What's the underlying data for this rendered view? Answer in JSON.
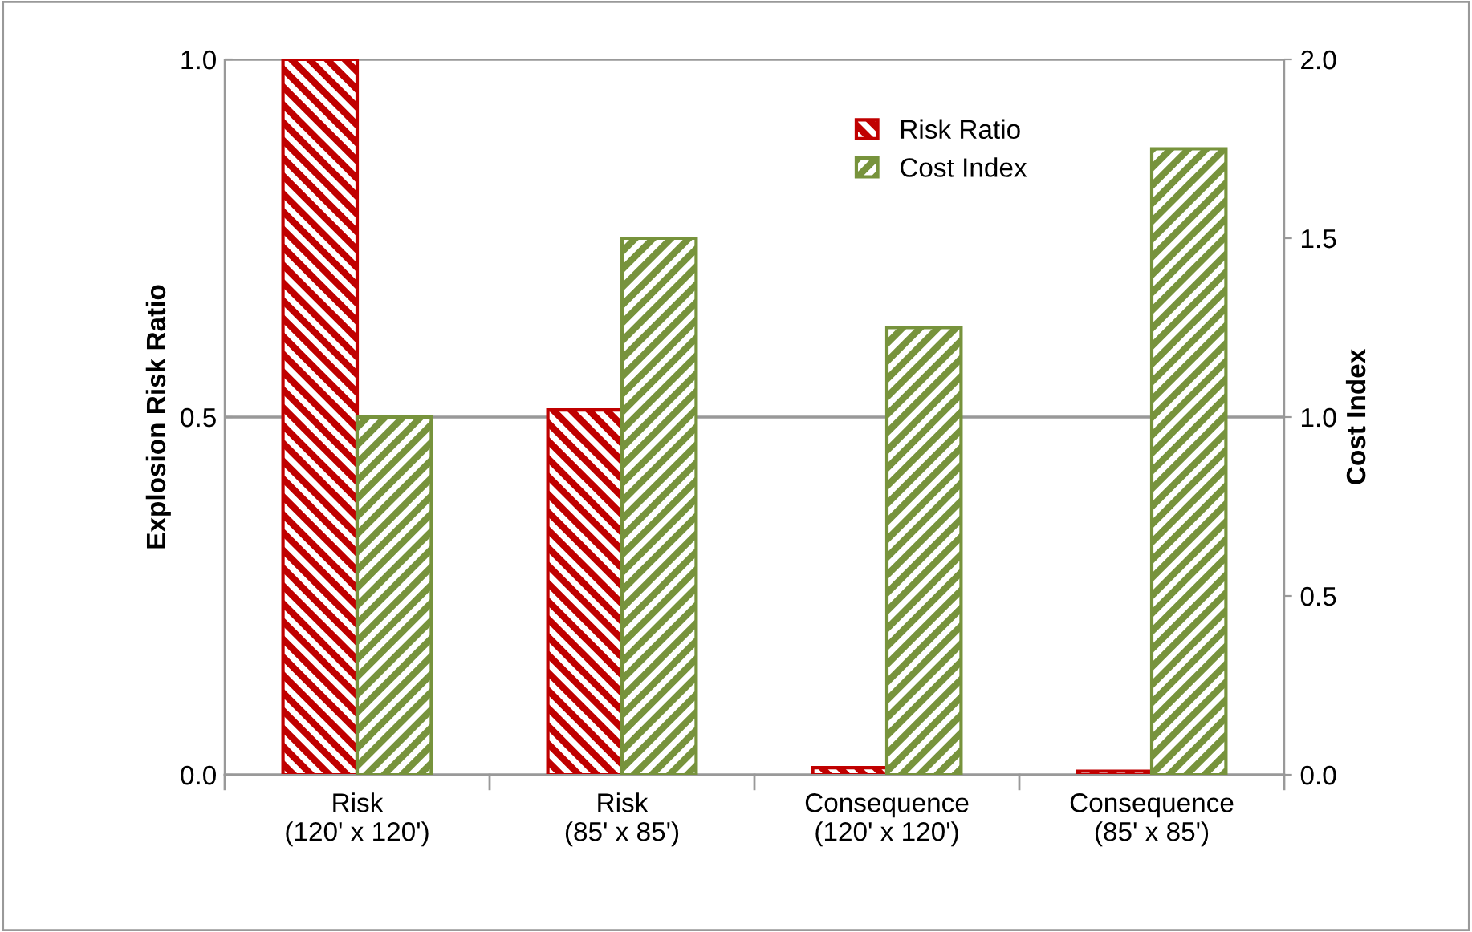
{
  "chart_data": {
    "type": "bar",
    "ylabel": "Explosion Risk Ratio",
    "y2label": "Cost Index",
    "categories": [
      "Risk\n(120' x 120')",
      "Risk\n(85' x 85')",
      "Consequence\n(120' x 120')",
      "Consequence\n(85' x 85')"
    ],
    "series": [
      {
        "name": "Risk Ratio",
        "color": "#c00000",
        "values": [
          1.0,
          0.51,
          0.01,
          0.005
        ]
      },
      {
        "name": "Cost Index",
        "color": "#77933c",
        "axis": "y2",
        "values": [
          1.0,
          1.5,
          1.25,
          1.75
        ]
      }
    ],
    "ylim": [
      0,
      1
    ],
    "yticks": [
      {
        "value": 0,
        "label": "0.0"
      },
      {
        "value": 0.5,
        "label": "0.5"
      },
      {
        "value": 1,
        "label": "1.0"
      }
    ],
    "y2lim": [
      0,
      2
    ],
    "y2ticks": [
      {
        "value": 0,
        "label": "0.0"
      },
      {
        "value": 0.5,
        "label": "0.5"
      },
      {
        "value": 1,
        "label": "1.0"
      },
      {
        "value": 1.5,
        "label": "1.5"
      },
      {
        "value": 2,
        "label": "2.0"
      }
    ],
    "grid": "y",
    "legend": "top right"
  }
}
